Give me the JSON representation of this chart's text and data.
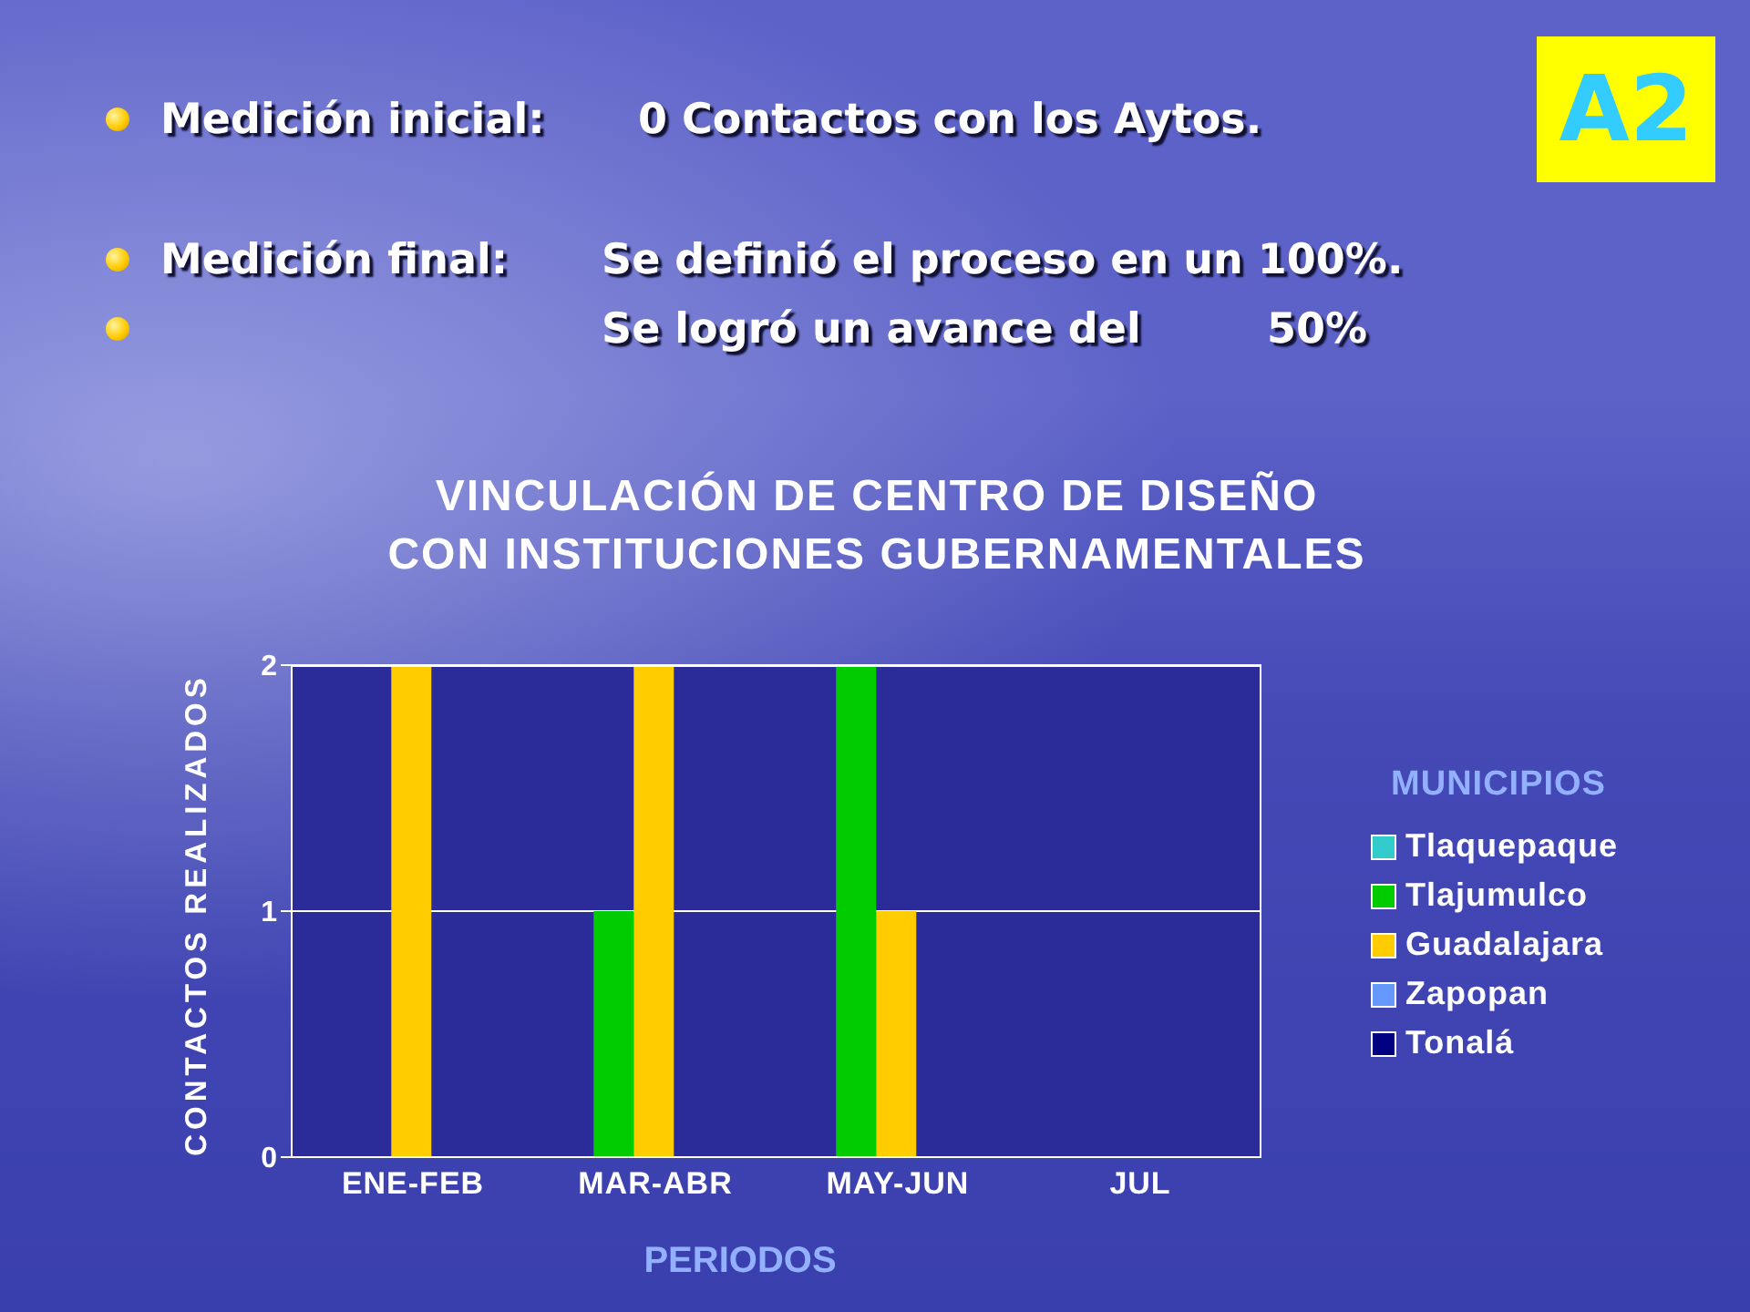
{
  "chart_data": {
    "type": "bar",
    "title": "VINCULACIÓN DE CENTRO DE DISEÑO\nCON INSTITUCIONES GUBERNAMENTALES",
    "xlabel": "PERIODOS",
    "ylabel": "CONTACTOS REALIZADOS",
    "legend_title": "MUNICIPIOS",
    "categories": [
      "ENE-FEB",
      "MAR-ABR",
      "MAY-JUN",
      "JUL"
    ],
    "series": [
      {
        "name": "Tlaquepaque",
        "color": "#33cccc",
        "values": [
          0,
          0,
          0,
          0
        ]
      },
      {
        "name": "Tlajumulco",
        "color": "#00cc00",
        "values": [
          0,
          1,
          2,
          0
        ]
      },
      {
        "name": "Guadalajara",
        "color": "#ffcc00",
        "values": [
          2,
          2,
          1,
          0
        ]
      },
      {
        "name": "Zapopan",
        "color": "#6699ff",
        "values": [
          0,
          0,
          0,
          0
        ]
      },
      {
        "name": "Tonalá",
        "color": "#000080",
        "values": [
          0,
          0,
          0,
          0
        ]
      }
    ],
    "ylim": [
      0,
      2
    ],
    "yticks": [
      0,
      1,
      2
    ],
    "grid": "y",
    "legend": "right",
    "annotations": [
      "Medición inicial:",
      "0 Contactos con los Aytos.",
      "Medición final:",
      "Se definió el proceso en un 100%.",
      "Se logró un avance del",
      "50%",
      "A2"
    ]
  }
}
